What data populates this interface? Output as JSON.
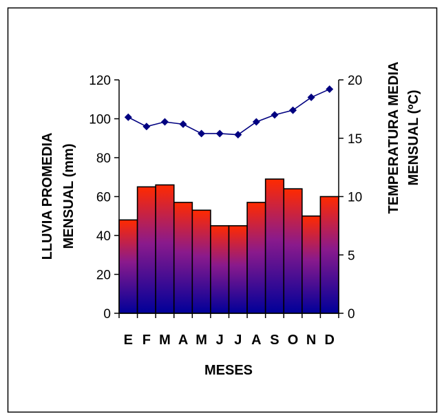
{
  "chart_data": {
    "type": "bar+line",
    "categories": [
      "E",
      "F",
      "M",
      "A",
      "M",
      "J",
      "J",
      "A",
      "S",
      "O",
      "N",
      "D"
    ],
    "series": [
      {
        "type": "bar",
        "axis": "left",
        "values": [
          48,
          65,
          66,
          57,
          53,
          45,
          45,
          57,
          69,
          64,
          50,
          60
        ]
      },
      {
        "type": "line",
        "axis": "right",
        "values": [
          16.8,
          16.0,
          16.4,
          16.2,
          15.4,
          15.4,
          15.3,
          16.4,
          17.0,
          17.4,
          18.5,
          19.2
        ]
      }
    ],
    "xlabel": "MESES",
    "ylabel": [
      "LLUVIA PROMEDIA",
      "MENSUAL (mm)"
    ],
    "y2label": [
      "TEMPERATURA MEDIA",
      "MENSUAL (ºC)"
    ],
    "ylim": [
      0,
      120
    ],
    "yticks": [
      0,
      20,
      40,
      60,
      80,
      100,
      120
    ],
    "y2lim": [
      0,
      20
    ],
    "y2ticks": [
      0,
      5,
      10,
      15,
      20
    ],
    "grid": false,
    "colors": {
      "bar_top": "#ff2a00",
      "bar_middle": "#8a1a8c",
      "bar_bottom": "#000099",
      "line": "#000080",
      "marker": "#000080"
    }
  }
}
